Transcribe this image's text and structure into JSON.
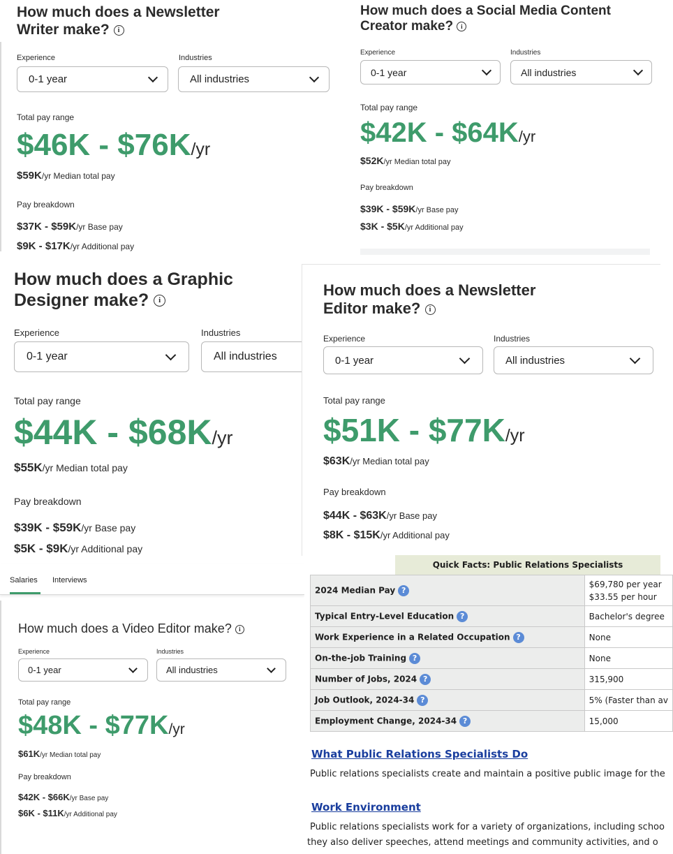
{
  "panels": {
    "newsletter_writer": {
      "title_l1": "How much does a Newsletter",
      "title_l2": "Writer make?",
      "experience_label": "Experience",
      "industries_label": "Industries",
      "experience_value": "0-1 year",
      "industries_value": "All industries",
      "total_label": "Total pay range",
      "range": "$46K - $76K",
      "unit": "/yr",
      "median_value": "$59K",
      "median_text": "/yr Median total pay",
      "breakdown_label": "Pay breakdown",
      "base_value": "$37K - $59K",
      "base_text": "/yr Base pay",
      "add_value": "$9K - $17K",
      "add_text": "/yr Additional pay"
    },
    "social_media": {
      "title_l1": "How much does a Social Media Content",
      "title_l2": "Creator make?",
      "experience_label": "Experience",
      "industries_label": "Industries",
      "experience_value": "0-1 year",
      "industries_value": "All industries",
      "total_label": "Total pay range",
      "range": "$42K - $64K",
      "unit": "/yr",
      "median_value": "$52K",
      "median_text": "/yr Median total pay",
      "breakdown_label": "Pay breakdown",
      "base_value": "$39K - $59K",
      "base_text": "/yr Base pay",
      "add_value": "$3K - $5K",
      "add_text": "/yr Additional pay"
    },
    "graphic_designer": {
      "title_l1": "How much does a Graphic",
      "title_l2": "Designer make?",
      "experience_label": "Experience",
      "industries_label": "Industries",
      "experience_value": "0-1 year",
      "industries_value": "All industries",
      "total_label": "Total pay range",
      "range": "$44K - $68K",
      "unit": "/yr",
      "median_value": "$55K",
      "median_text": "/yr Median total pay",
      "breakdown_label": "Pay breakdown",
      "base_value": "$39K - $59K",
      "base_text": "/yr Base pay",
      "add_value": "$5K - $9K",
      "add_text": "/yr Additional pay"
    },
    "newsletter_editor": {
      "title_l1": "How much does a Newsletter",
      "title_l2": "Editor make?",
      "experience_label": "Experience",
      "industries_label": "Industries",
      "experience_value": "0-1 year",
      "industries_value": "All industries",
      "total_label": "Total pay range",
      "range": "$51K - $77K",
      "unit": "/yr",
      "median_value": "$63K",
      "median_text": "/yr Median total pay",
      "breakdown_label": "Pay breakdown",
      "base_value": "$44K - $63K",
      "base_text": "/yr Base pay",
      "add_value": "$8K - $15K",
      "add_text": "/yr Additional pay"
    },
    "video_editor": {
      "tabs": [
        "Salaries",
        "Interviews"
      ],
      "title_l1": "How much does a Video Editor make?",
      "experience_label": "Experience",
      "industries_label": "Industries",
      "experience_value": "0-1 year",
      "industries_value": "All industries",
      "total_label": "Total pay range",
      "range": "$48K - $77K",
      "unit": "/yr",
      "median_value": "$61K",
      "median_text": "/yr Median total pay",
      "breakdown_label": "Pay breakdown",
      "base_value": "$42K - $66K",
      "base_text": "/yr Base pay",
      "add_value": "$6K - $11K",
      "add_text": "/yr Additional pay"
    }
  },
  "bls": {
    "heading": "Quick Facts: Public Relations Specialists",
    "rows": [
      {
        "key": "2024 Median Pay",
        "value": "$69,780 per year",
        "value2": "$33.55 per hour"
      },
      {
        "key": "Typical Entry-Level Education",
        "value": "Bachelor's degree"
      },
      {
        "key": "Work Experience in a Related Occupation",
        "value": "None"
      },
      {
        "key": "On-the-job Training",
        "value": "None"
      },
      {
        "key": "Number of Jobs, 2024",
        "value": "315,900"
      },
      {
        "key": "Job Outlook, 2024-34",
        "value": "5% (Faster than av"
      },
      {
        "key": "Employment Change, 2024-34",
        "value": "15,000"
      }
    ],
    "link1": "What Public Relations Specialists Do",
    "text1": "Public relations specialists create and maintain a positive public image for the",
    "link2": "Work Environment",
    "text2": "Public relations specialists work for a variety of organizations, including schoo",
    "text3": "they also deliver speeches, attend meetings and community activities, and o"
  },
  "colors": {
    "accent_green": "#3e9b6b",
    "tab_underline": "#3e9b6b",
    "link_blue": "#1a3e9e"
  }
}
